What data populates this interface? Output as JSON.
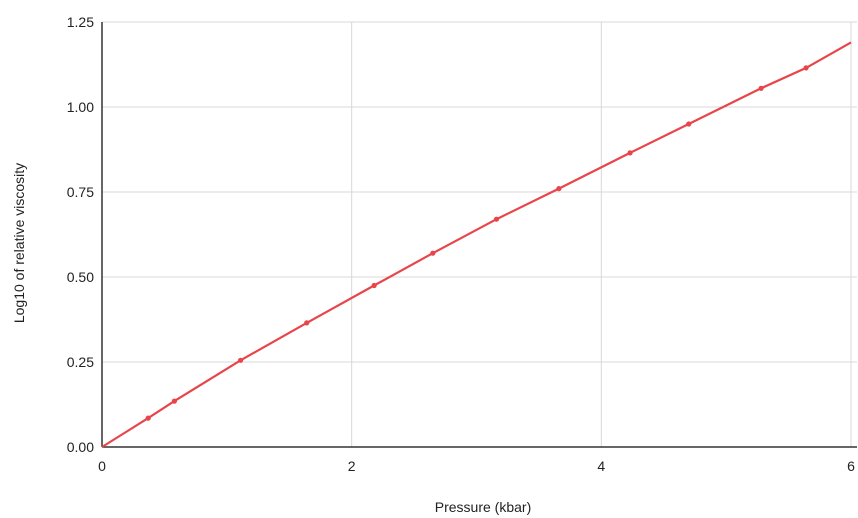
{
  "chart_data": {
    "type": "line",
    "title": "",
    "xlabel": "Pressure (kbar)",
    "ylabel": "Log10 of relative viscosity",
    "xlim": [
      0,
      6
    ],
    "ylim": [
      0,
      1.25
    ],
    "xticks": [
      "0",
      "2",
      "4",
      "6"
    ],
    "yticks": [
      "0.00",
      "0.25",
      "0.50",
      "0.75",
      "1.00",
      "1.25"
    ],
    "grid": true,
    "line_color": "#e8454a",
    "marker_color": "#e8454a",
    "series": [
      {
        "points": [
          [
            0.37,
            0.085
          ],
          [
            0.58,
            0.135
          ],
          [
            1.11,
            0.255
          ],
          [
            1.64,
            0.365
          ],
          [
            2.18,
            0.475
          ],
          [
            2.65,
            0.57
          ],
          [
            3.16,
            0.67
          ],
          [
            3.66,
            0.76
          ],
          [
            4.23,
            0.865
          ],
          [
            4.7,
            0.95
          ],
          [
            5.28,
            1.055
          ],
          [
            5.64,
            1.115
          ]
        ],
        "curve": [
          [
            0.0,
            0.0
          ],
          [
            0.37,
            0.085
          ],
          [
            0.58,
            0.135
          ],
          [
            1.11,
            0.255
          ],
          [
            1.64,
            0.365
          ],
          [
            2.18,
            0.475
          ],
          [
            2.65,
            0.57
          ],
          [
            3.16,
            0.67
          ],
          [
            3.66,
            0.76
          ],
          [
            4.23,
            0.865
          ],
          [
            4.7,
            0.95
          ],
          [
            5.28,
            1.055
          ],
          [
            5.64,
            1.115
          ],
          [
            6.0,
            1.19
          ]
        ]
      }
    ]
  }
}
